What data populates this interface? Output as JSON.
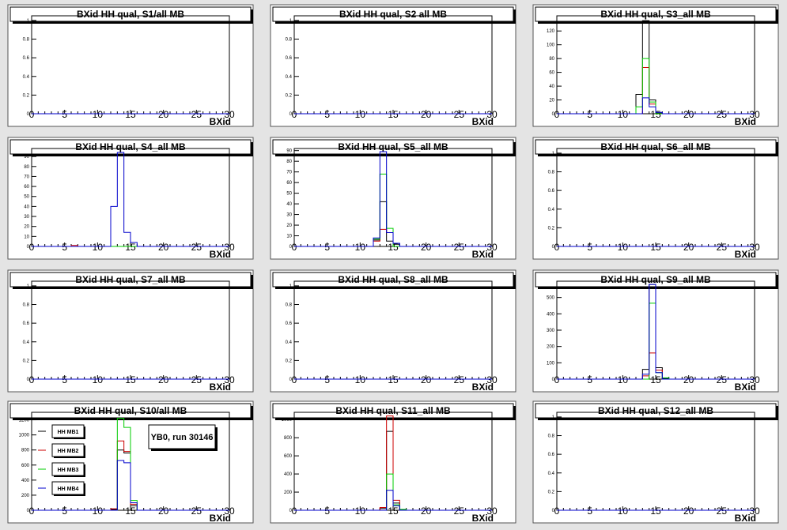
{
  "colors": {
    "MB1": "#000000",
    "MB2": "#cc0000",
    "MB3": "#00cc00",
    "MB4": "#0000cc",
    "pad": "#ffffff",
    "canvas": "#e4e4e4"
  },
  "chart_data": [
    {
      "type": "histogram",
      "title": "BXid HH qual, S1/all MB",
      "xlabel": "BXid",
      "xlim": [
        0,
        30
      ],
      "ylim": [
        0,
        1.05
      ],
      "xticks": [
        "0",
        "5",
        "10",
        "15",
        "20",
        "25",
        "30"
      ],
      "yticks": [
        "0",
        "0.2",
        "0.4",
        "0.6",
        "0.8",
        "1"
      ],
      "series": [
        {
          "name": "MB1",
          "color": "#000000",
          "bins": []
        },
        {
          "name": "MB2",
          "color": "#cc0000",
          "bins": []
        },
        {
          "name": "MB3",
          "color": "#00cc00",
          "bins": []
        },
        {
          "name": "MB4",
          "color": "#0000cc",
          "bins": []
        }
      ]
    },
    {
      "type": "histogram",
      "title": "BXid HH qual, S2 all MB",
      "xlabel": "BXid",
      "xlim": [
        0,
        30
      ],
      "ylim": [
        0,
        1.05
      ],
      "xticks": [
        "0",
        "5",
        "10",
        "15",
        "20",
        "25",
        "30"
      ],
      "yticks": [
        "0",
        "0.2",
        "0.4",
        "0.6",
        "0.8",
        "1"
      ],
      "series": [
        {
          "name": "MB1",
          "color": "#000000",
          "bins": []
        },
        {
          "name": "MB2",
          "color": "#cc0000",
          "bins": []
        },
        {
          "name": "MB3",
          "color": "#00cc00",
          "bins": []
        },
        {
          "name": "MB4",
          "color": "#0000cc",
          "bins": []
        }
      ]
    },
    {
      "type": "histogram",
      "title": "BXid HH qual, S3_all MB",
      "xlabel": "BXid",
      "xlim": [
        0,
        30
      ],
      "ylim": [
        0,
        142
      ],
      "xticks": [
        "0",
        "5",
        "10",
        "15",
        "20",
        "25",
        "30"
      ],
      "yticks": [
        "0",
        "20",
        "40",
        "60",
        "80",
        "100",
        "120"
      ],
      "series": [
        {
          "name": "MB1",
          "color": "#000000",
          "bins": [
            [
              12,
              28
            ],
            [
              13,
              135
            ],
            [
              14,
              20
            ],
            [
              15,
              1
            ]
          ]
        },
        {
          "name": "MB2",
          "color": "#cc0000",
          "bins": [
            [
              13,
              67
            ],
            [
              14,
              14
            ]
          ]
        },
        {
          "name": "MB3",
          "color": "#00cc00",
          "bins": [
            [
              12,
              10
            ],
            [
              13,
              80
            ],
            [
              14,
              17
            ]
          ]
        },
        {
          "name": "MB4",
          "color": "#0000cc",
          "bins": [
            [
              13,
              23
            ],
            [
              14,
              10
            ],
            [
              15,
              2
            ]
          ]
        }
      ]
    },
    {
      "type": "histogram",
      "title": "BXid HH qual, S4_all MB",
      "xlabel": "BXid",
      "xlim": [
        0,
        30
      ],
      "ylim": [
        0,
        98
      ],
      "xticks": [
        "0",
        "5",
        "10",
        "15",
        "20",
        "25",
        "30"
      ],
      "yticks": [
        "0",
        "10",
        "20",
        "30",
        "40",
        "50",
        "60",
        "70",
        "80",
        "90"
      ],
      "series": [
        {
          "name": "MB1",
          "color": "#000000",
          "bins": []
        },
        {
          "name": "MB2",
          "color": "#cc0000",
          "bins": [
            [
              6,
              1
            ]
          ]
        },
        {
          "name": "MB3",
          "color": "#00cc00",
          "bins": []
        },
        {
          "name": "MB4",
          "color": "#0000cc",
          "bins": [
            [
              12,
              40
            ],
            [
              13,
              94
            ],
            [
              14,
              14
            ],
            [
              15,
              4
            ]
          ]
        }
      ]
    },
    {
      "type": "histogram",
      "title": "BXid HH qual, S5_all MB",
      "xlabel": "BXid",
      "xlim": [
        0,
        30
      ],
      "ylim": [
        0,
        92
      ],
      "xticks": [
        "0",
        "5",
        "10",
        "15",
        "20",
        "25",
        "30"
      ],
      "yticks": [
        "0",
        "10",
        "20",
        "30",
        "40",
        "50",
        "60",
        "70",
        "80",
        "90"
      ],
      "series": [
        {
          "name": "MB1",
          "color": "#000000",
          "bins": [
            [
              12,
              6
            ],
            [
              13,
              42
            ],
            [
              14,
              5
            ],
            [
              15,
              2
            ]
          ]
        },
        {
          "name": "MB2",
          "color": "#cc0000",
          "bins": [
            [
              12,
              5
            ],
            [
              13,
              16
            ],
            [
              14,
              13
            ]
          ]
        },
        {
          "name": "MB3",
          "color": "#00cc00",
          "bins": [
            [
              12,
              7
            ],
            [
              13,
              68
            ],
            [
              14,
              17
            ]
          ]
        },
        {
          "name": "MB4",
          "color": "#0000cc",
          "bins": [
            [
              12,
              8
            ],
            [
              13,
              89
            ],
            [
              14,
              13
            ],
            [
              15,
              3
            ]
          ]
        }
      ]
    },
    {
      "type": "histogram",
      "title": "BXid HH qual, S6_all MB",
      "xlabel": "BXid",
      "xlim": [
        0,
        30
      ],
      "ylim": [
        0,
        1.05
      ],
      "xticks": [
        "0",
        "5",
        "10",
        "15",
        "20",
        "25",
        "30"
      ],
      "yticks": [
        "0",
        "0.2",
        "0.4",
        "0.6",
        "0.8",
        "1"
      ],
      "series": [
        {
          "name": "MB1",
          "color": "#000000",
          "bins": []
        },
        {
          "name": "MB2",
          "color": "#cc0000",
          "bins": []
        },
        {
          "name": "MB3",
          "color": "#00cc00",
          "bins": []
        },
        {
          "name": "MB4",
          "color": "#0000cc",
          "bins": []
        }
      ]
    },
    {
      "type": "histogram",
      "title": "BXid HH qual, S7_all MB",
      "xlabel": "BXid",
      "xlim": [
        0,
        30
      ],
      "ylim": [
        0,
        1.05
      ],
      "xticks": [
        "0",
        "5",
        "10",
        "15",
        "20",
        "25",
        "30"
      ],
      "yticks": [
        "0",
        "0.2",
        "0.4",
        "0.6",
        "0.8",
        "1"
      ],
      "series": [
        {
          "name": "MB1",
          "color": "#000000",
          "bins": []
        },
        {
          "name": "MB2",
          "color": "#cc0000",
          "bins": []
        },
        {
          "name": "MB3",
          "color": "#00cc00",
          "bins": []
        },
        {
          "name": "MB4",
          "color": "#0000cc",
          "bins": []
        }
      ]
    },
    {
      "type": "histogram",
      "title": "BXid HH qual, S8_all MB",
      "xlabel": "BXid",
      "xlim": [
        0,
        30
      ],
      "ylim": [
        0,
        1.05
      ],
      "xticks": [
        "0",
        "5",
        "10",
        "15",
        "20",
        "25",
        "30"
      ],
      "yticks": [
        "0",
        "0.2",
        "0.4",
        "0.6",
        "0.8",
        "1"
      ],
      "series": [
        {
          "name": "MB1",
          "color": "#000000",
          "bins": []
        },
        {
          "name": "MB2",
          "color": "#cc0000",
          "bins": []
        },
        {
          "name": "MB3",
          "color": "#00cc00",
          "bins": []
        },
        {
          "name": "MB4",
          "color": "#0000cc",
          "bins": []
        }
      ]
    },
    {
      "type": "histogram",
      "title": "BXid HH qual, S9_all MB",
      "xlabel": "BXid",
      "xlim": [
        0,
        30
      ],
      "ylim": [
        0,
        600
      ],
      "xticks": [
        "0",
        "5",
        "10",
        "15",
        "20",
        "25",
        "30"
      ],
      "yticks": [
        "0",
        "100",
        "200",
        "300",
        "400",
        "500"
      ],
      "series": [
        {
          "name": "MB1",
          "color": "#000000",
          "bins": [
            [
              13,
              60
            ],
            [
              14,
              580
            ],
            [
              15,
              70
            ],
            [
              16,
              5
            ]
          ]
        },
        {
          "name": "MB2",
          "color": "#cc0000",
          "bins": [
            [
              13,
              20
            ],
            [
              14,
              160
            ],
            [
              15,
              55
            ]
          ]
        },
        {
          "name": "MB3",
          "color": "#00cc00",
          "bins": [
            [
              14,
              465
            ],
            [
              15,
              40
            ],
            [
              16,
              8
            ]
          ]
        },
        {
          "name": "MB4",
          "color": "#0000cc",
          "bins": [
            [
              13,
              30
            ],
            [
              14,
              580
            ],
            [
              15,
              40
            ]
          ]
        }
      ]
    },
    {
      "type": "histogram",
      "title": "BXid HH qual, S10/all MB",
      "xlabel": "BXid",
      "xlim": [
        0,
        30
      ],
      "ylim": [
        0,
        1300
      ],
      "xticks": [
        "0",
        "5",
        "10",
        "15",
        "20",
        "25",
        "30"
      ],
      "yticks": [
        "0",
        "200",
        "400",
        "600",
        "800",
        "1000",
        "1200"
      ],
      "series": [
        {
          "name": "MB1",
          "color": "#000000",
          "bins": [
            [
              12,
              10
            ],
            [
              13,
              800
            ],
            [
              14,
              760
            ],
            [
              15,
              60
            ]
          ]
        },
        {
          "name": "MB2",
          "color": "#cc0000",
          "bins": [
            [
              12,
              20
            ],
            [
              13,
              920
            ],
            [
              14,
              780
            ],
            [
              15,
              80
            ]
          ]
        },
        {
          "name": "MB3",
          "color": "#00cc00",
          "bins": [
            [
              13,
              1220
            ],
            [
              14,
              1100
            ],
            [
              15,
              130
            ]
          ]
        },
        {
          "name": "MB4",
          "color": "#0000cc",
          "bins": [
            [
              13,
              660
            ],
            [
              14,
              630
            ],
            [
              15,
              100
            ]
          ]
        }
      ],
      "legend": {
        "entries": [
          "HH MB1",
          "HH MB2",
          "HH MB3",
          "HH MB4"
        ],
        "placement": "left"
      },
      "annotation": "YB0, run 30146"
    },
    {
      "type": "histogram",
      "title": "BXid HH qual, S11_all MB",
      "xlabel": "BXid",
      "xlim": [
        0,
        30
      ],
      "ylim": [
        0,
        1080
      ],
      "xticks": [
        "0",
        "5",
        "10",
        "15",
        "20",
        "25",
        "30"
      ],
      "yticks": [
        "0",
        "200",
        "400",
        "600",
        "800",
        "1000"
      ],
      "series": [
        {
          "name": "MB1",
          "color": "#000000",
          "bins": [
            [
              13,
              20
            ],
            [
              14,
              870
            ],
            [
              15,
              80
            ],
            [
              16,
              5
            ]
          ]
        },
        {
          "name": "MB2",
          "color": "#cc0000",
          "bins": [
            [
              13,
              30
            ],
            [
              14,
              1040
            ],
            [
              15,
              110
            ]
          ]
        },
        {
          "name": "MB3",
          "color": "#00cc00",
          "bins": [
            [
              14,
              400
            ],
            [
              15,
              60
            ],
            [
              16,
              10
            ]
          ]
        },
        {
          "name": "MB4",
          "color": "#0000cc",
          "bins": [
            [
              14,
              220
            ],
            [
              15,
              50
            ]
          ]
        }
      ]
    },
    {
      "type": "histogram",
      "title": "BXid HH qual, S12_all MB",
      "xlabel": "BXid",
      "xlim": [
        0,
        30
      ],
      "ylim": [
        0,
        1.05
      ],
      "xticks": [
        "0",
        "5",
        "10",
        "15",
        "20",
        "25",
        "30"
      ],
      "yticks": [
        "0",
        "0.2",
        "0.4",
        "0.6",
        "0.8",
        "1"
      ],
      "series": [
        {
          "name": "MB1",
          "color": "#000000",
          "bins": []
        },
        {
          "name": "MB2",
          "color": "#cc0000",
          "bins": []
        },
        {
          "name": "MB3",
          "color": "#00cc00",
          "bins": []
        },
        {
          "name": "MB4",
          "color": "#0000cc",
          "bins": []
        }
      ]
    }
  ]
}
